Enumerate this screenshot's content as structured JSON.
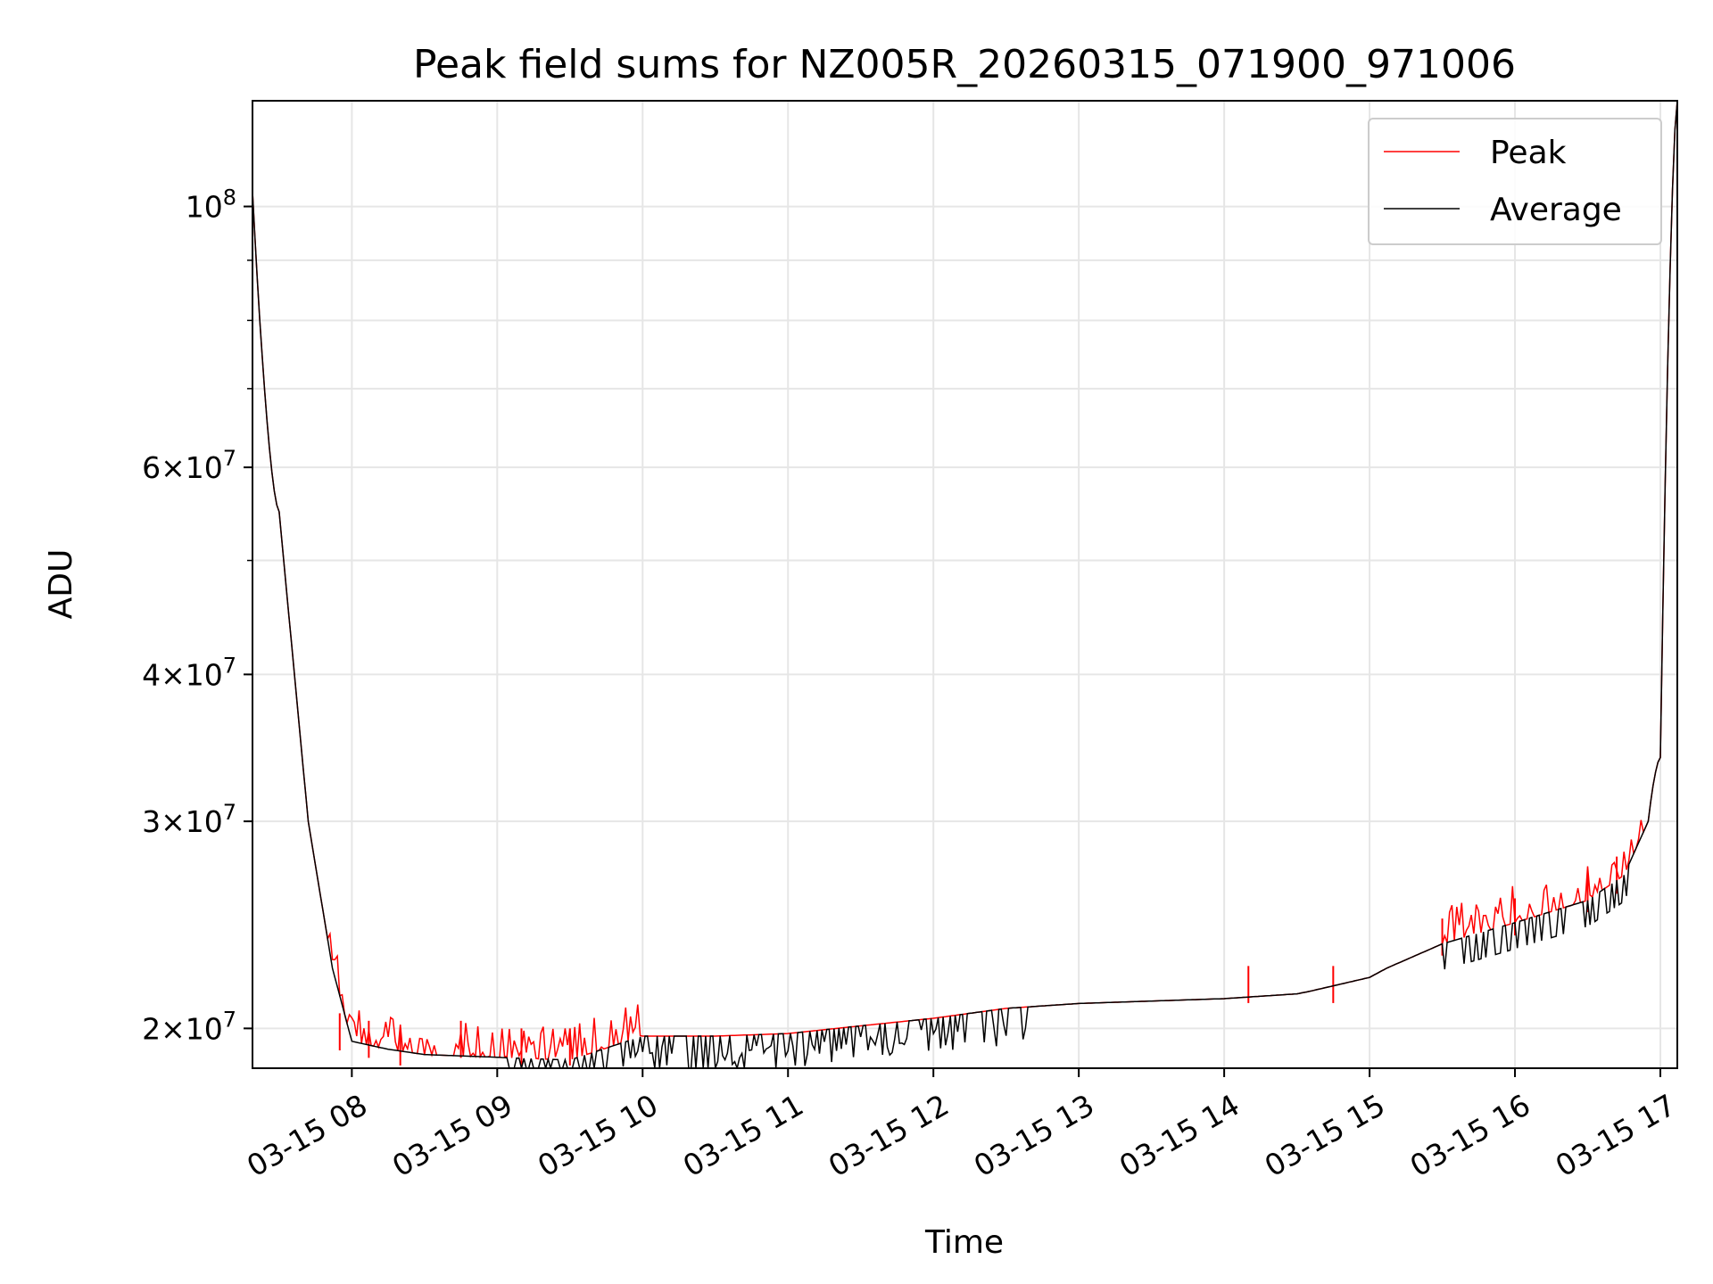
{
  "chart_data": {
    "type": "line",
    "title": "Peak field sums for NZ005R_20260315_071900_971006",
    "xlabel": "Time",
    "ylabel": "ADU",
    "yscale": "log",
    "grid": true,
    "legend": {
      "placement": "top-right"
    },
    "xlim": [
      "2026-03-15 07:19",
      "2026-03-15 17:07"
    ],
    "ylim": [
      18500000,
      123000000
    ],
    "x_ticks": [
      "03-15 08",
      "03-15 09",
      "03-15 10",
      "03-15 11",
      "03-15 12",
      "03-15 13",
      "03-15 14",
      "03-15 15",
      "03-15 16",
      "03-15 17"
    ],
    "y_ticks": [
      {
        "value": 20000000,
        "mantissa": "2",
        "exponent": "7"
      },
      {
        "value": 30000000,
        "mantissa": "3",
        "exponent": "7"
      },
      {
        "value": 40000000,
        "mantissa": "4",
        "exponent": "7"
      },
      {
        "value": 60000000,
        "mantissa": "6",
        "exponent": "7"
      },
      {
        "value": 100000000,
        "mantissa": "",
        "exponent": "8"
      }
    ],
    "series": [
      {
        "name": "Peak",
        "color": "#ff0000",
        "x": [
          "2026-03-15 07:19",
          "2026-03-15 07:30",
          "2026-03-15 07:42",
          "2026-03-15 07:52",
          "2026-03-15 08:00",
          "2026-03-15 08:15",
          "2026-03-15 08:30",
          "2026-03-15 09:00",
          "2026-03-15 09:30",
          "2026-03-15 10:00",
          "2026-03-15 10:30",
          "2026-03-15 11:00",
          "2026-03-15 11:30",
          "2026-03-15 12:00",
          "2026-03-15 12:30",
          "2026-03-15 13:00",
          "2026-03-15 13:30",
          "2026-03-15 14:00",
          "2026-03-15 14:30",
          "2026-03-15 14:35",
          "2026-03-15 15:00",
          "2026-03-15 15:07",
          "2026-03-15 15:30",
          "2026-03-15 16:00",
          "2026-03-15 16:30",
          "2026-03-15 16:45",
          "2026-03-15 16:55",
          "2026-03-15 17:00",
          "2026-03-15 17:07"
        ],
        "y": [
          103000000,
          55000000,
          30000000,
          22500000,
          19500000,
          19200000,
          19000000,
          18900000,
          18800000,
          19700000,
          19700000,
          19800000,
          20100000,
          20400000,
          20800000,
          21000000,
          21100000,
          21200000,
          21400000,
          21500000,
          22100000,
          22500000,
          23600000,
          24600000,
          25700000,
          27000000,
          30000000,
          34000000,
          123000000
        ],
        "spikes": [
          {
            "x": "2026-03-15 07:55",
            "y": 20600000
          },
          {
            "x": "2026-03-15 08:07",
            "y": 20300000
          },
          {
            "x": "2026-03-15 08:20",
            "y": 20000000
          },
          {
            "x": "2026-03-15 08:45",
            "y": 20300000
          },
          {
            "x": "2026-03-15 09:10",
            "y": 20000000
          },
          {
            "x": "2026-03-15 09:30",
            "y": 20000000
          },
          {
            "x": "2026-03-15 14:10",
            "y": 22600000
          },
          {
            "x": "2026-03-15 14:45",
            "y": 22600000
          },
          {
            "x": "2026-03-15 15:30",
            "y": 24800000
          },
          {
            "x": "2026-03-15 16:00",
            "y": 25800000
          },
          {
            "x": "2026-03-15 16:30",
            "y": 27000000
          },
          {
            "x": "2026-03-15 16:42",
            "y": 28000000
          }
        ]
      },
      {
        "name": "Average",
        "color": "#000000",
        "x": [
          "2026-03-15 07:19",
          "2026-03-15 07:30",
          "2026-03-15 07:42",
          "2026-03-15 07:52",
          "2026-03-15 08:00",
          "2026-03-15 08:15",
          "2026-03-15 08:30",
          "2026-03-15 09:00",
          "2026-03-15 09:30",
          "2026-03-15 10:00",
          "2026-03-15 10:30",
          "2026-03-15 11:00",
          "2026-03-15 11:30",
          "2026-03-15 12:00",
          "2026-03-15 12:30",
          "2026-03-15 13:00",
          "2026-03-15 13:30",
          "2026-03-15 14:00",
          "2026-03-15 14:30",
          "2026-03-15 14:35",
          "2026-03-15 15:00",
          "2026-03-15 15:07",
          "2026-03-15 15:30",
          "2026-03-15 16:00",
          "2026-03-15 16:30",
          "2026-03-15 16:45",
          "2026-03-15 16:55",
          "2026-03-15 17:00",
          "2026-03-15 17:07"
        ],
        "y": [
          103000000,
          55000000,
          30000000,
          22500000,
          19500000,
          19200000,
          19000000,
          18900000,
          18800000,
          19700000,
          19700000,
          19800000,
          20100000,
          20400000,
          20800000,
          21000000,
          21100000,
          21200000,
          21400000,
          21500000,
          22100000,
          22500000,
          23600000,
          24600000,
          25700000,
          27000000,
          30000000,
          34000000,
          123000000
        ],
        "dips_to": 18500000
      }
    ]
  }
}
